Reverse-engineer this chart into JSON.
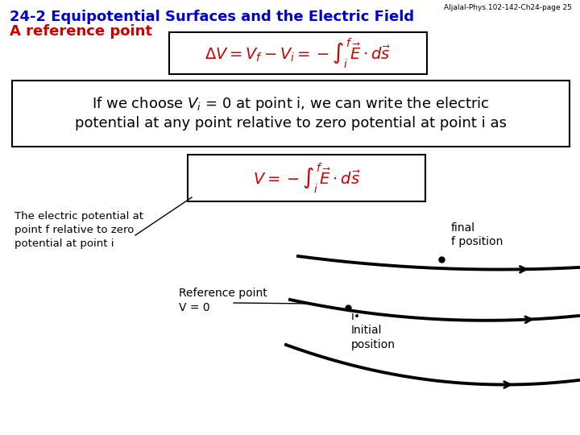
{
  "title_blue": "24-2 Equipotential Surfaces and the Electric Field",
  "title_red": "A reference point",
  "header_note": "Aljalal-Phys.102-142-Ch24-page 25",
  "bg_color": "#ffffff",
  "title_blue_color": "#0000cc",
  "title_red_color": "#cc0000",
  "formula1_color": "#cc0000",
  "formula2_color": "#cc0000",
  "text_color": "#000000",
  "label_left": "The electric potential at\npoint f relative to zero\npotential at point i",
  "label_ref": "Reference point\nV = 0",
  "label_final": "final\nf position",
  "label_initial": "i•\nInitial\nposition"
}
